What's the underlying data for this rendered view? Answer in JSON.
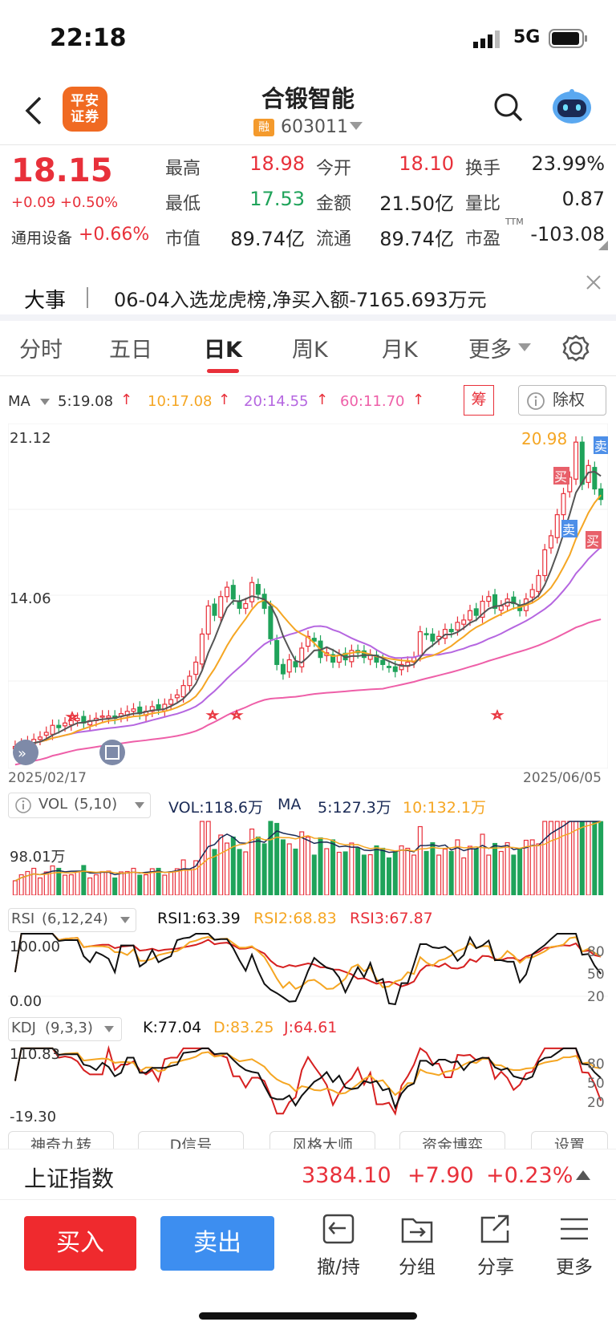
{
  "status_bar": {
    "time": "22:18",
    "network": "5G"
  },
  "header": {
    "logo_line1": "平安",
    "logo_line2": "证券",
    "stock_name": "合锻智能",
    "margin_badge": "融",
    "stock_code": "603011"
  },
  "quote": {
    "last_price": "18.15",
    "change": "+0.09 +0.50%",
    "sector_label": "通用设备",
    "sector_change": "+0.66%",
    "fields": [
      {
        "label": "最高",
        "value": "18.98"
      },
      {
        "label": "今开",
        "value": "18.10"
      },
      {
        "label": "换手",
        "value": "23.99%"
      },
      {
        "label": "最低",
        "value": "17.53"
      },
      {
        "label": "金额",
        "value": "21.50亿"
      },
      {
        "label": "量比",
        "value": "0.87"
      },
      {
        "label": "市值",
        "value": "89.74亿"
      },
      {
        "label": "流通",
        "value": "89.74亿"
      },
      {
        "label": "市盈",
        "value": "-103.08"
      }
    ],
    "pe_superscript": "TTM"
  },
  "news": {
    "label": "大事",
    "text": "06-04入选龙虎榜,净买入额-7165.693万元"
  },
  "tabs": [
    "分时",
    "五日",
    "日K",
    "周K",
    "月K",
    "更多"
  ],
  "ma_legend": {
    "name": "MA",
    "ma5": "5:19.08",
    "ma10": "10:17.08",
    "ma20": "20:14.55",
    "ma60": "60:11.70",
    "chip_button": "筹",
    "exright_button": "除权"
  },
  "chart_data": [
    {
      "type": "candlestick",
      "y_top_label": "21.12",
      "y_mid_label": "14.06",
      "start_date": "2025/02/17",
      "end_date": "2025/06/05",
      "high_annotation": "20.98",
      "buy_marker": "买",
      "sell_marker": "卖",
      "closes": [
        7.6,
        7.7,
        7.8,
        7.9,
        8.0,
        8.2,
        8.5,
        8.4,
        8.6,
        8.7,
        8.8,
        8.6,
        8.7,
        8.8,
        8.9,
        8.9,
        8.8,
        9.0,
        9.1,
        9.2,
        9.0,
        9.1,
        9.3,
        9.2,
        9.4,
        9.6,
        9.8,
        10.2,
        10.6,
        11.2,
        12.4,
        13.6,
        13.2,
        14.0,
        14.4,
        13.9,
        13.5,
        13.7,
        14.6,
        14.1,
        13.5,
        12.2,
        11.1,
        10.7,
        11.3,
        11.0,
        11.8,
        12.3,
        12.1,
        11.4,
        11.6,
        11.2,
        11.5,
        11.3,
        11.7,
        11.6,
        11.4,
        11.5,
        11.2,
        11.1,
        11.0,
        10.8,
        11.1,
        11.2,
        11.4,
        12.5,
        12.4,
        12.1,
        12.3,
        12.6,
        12.5,
        12.9,
        13.0,
        13.4,
        13.2,
        13.8,
        14.0,
        13.5,
        13.6,
        13.9,
        13.7,
        13.4,
        13.9,
        14.3,
        14.9,
        16.0,
        16.6,
        17.5,
        18.4,
        19.1,
        20.6,
        18.8,
        19.6,
        18.6,
        18.15
      ],
      "ma5_last": 19.08,
      "ma10_last": 17.08,
      "ma20_last": 14.55,
      "ma60_last": 11.7
    },
    {
      "type": "bar",
      "name": "VOL",
      "params": "(5,10)",
      "vol_label": "VOL:118.6万",
      "ma_label": "MA",
      "ma5_label": "5:127.3万",
      "ma10_label": "10:132.1万",
      "y_label": "98.01万"
    },
    {
      "type": "line",
      "name": "RSI",
      "params": "(6,12,24)",
      "rsi1": "RSI1:63.39",
      "rsi2": "RSI2:68.83",
      "rsi3": "RSI3:67.87",
      "y_top": "100.00",
      "y_bottom": "0.00",
      "ticks": [
        "80",
        "50",
        "20"
      ]
    },
    {
      "type": "line",
      "name": "KDJ",
      "params": "(9,3,3)",
      "k": "K:77.04",
      "d": "D:83.25",
      "j": "J:64.61",
      "y_top": "110.83",
      "y_bottom": "-19.30",
      "ticks": [
        "80",
        "50",
        "20"
      ]
    }
  ],
  "indicator_tabs": [
    "神奇九转",
    "D信号",
    "风格大师",
    "资金博弈",
    "设置"
  ],
  "index_bar": {
    "name": "上证指数",
    "value": "3384.10",
    "change": "+7.90",
    "pct": "+0.23%"
  },
  "bottom_bar": {
    "buy": "买入",
    "sell": "卖出",
    "items": [
      "撤/持",
      "分组",
      "分享",
      "更多"
    ]
  },
  "colors": {
    "up": "#e8303a",
    "down": "#1fa35a",
    "ma5": "#555555",
    "ma10": "#f5a623",
    "ma20": "#b566e0",
    "ma60": "#ee5fa8"
  }
}
